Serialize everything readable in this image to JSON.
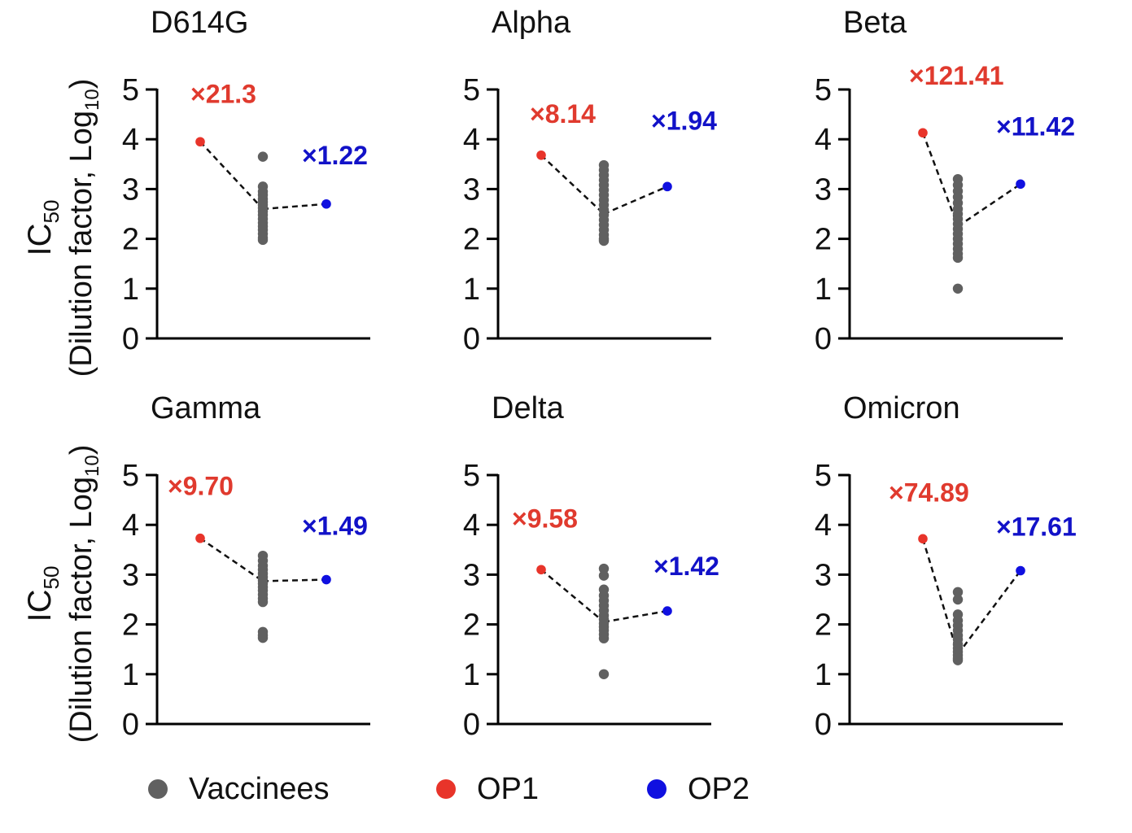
{
  "chart_data": [
    {
      "type": "scatter",
      "title": "D614G",
      "ylabel_main": "IC",
      "ylabel_sub": "50",
      "ylabel2": "(Dilution factor, Log",
      "ylabel2_sub": "10",
      "ylabel2_close": ")",
      "ylim": [
        0,
        5
      ],
      "yticks": [
        "0",
        "1",
        "2",
        "3",
        "4",
        "5"
      ],
      "op1": {
        "value": 3.95,
        "label": "×21.3"
      },
      "op2": {
        "value": 2.7,
        "label": "×1.22"
      },
      "vaccinees_median": 2.6,
      "vaccinees": [
        3.65,
        3.05,
        2.95,
        2.88,
        2.8,
        2.74,
        2.68,
        2.62,
        2.55,
        2.48,
        2.4,
        2.32,
        2.25,
        2.18,
        2.1,
        2.02,
        1.98
      ]
    },
    {
      "type": "scatter",
      "title": "Alpha",
      "ylim": [
        0,
        5
      ],
      "yticks": [
        "0",
        "1",
        "2",
        "3",
        "4",
        "5"
      ],
      "op1": {
        "value": 3.68,
        "label": "×8.14"
      },
      "op2": {
        "value": 3.05,
        "label": "×1.94"
      },
      "vaccinees_median": 2.5,
      "vaccinees": [
        3.48,
        3.38,
        3.28,
        3.18,
        3.08,
        2.98,
        2.88,
        2.78,
        2.68,
        2.58,
        2.48,
        2.38,
        2.28,
        2.18,
        2.08,
        2.0,
        1.96
      ]
    },
    {
      "type": "scatter",
      "title": "Beta",
      "ylim": [
        0,
        5
      ],
      "yticks": [
        "0",
        "1",
        "2",
        "3",
        "4",
        "5"
      ],
      "op1": {
        "value": 4.13,
        "label": "×121.41"
      },
      "op2": {
        "value": 3.1,
        "label": "×11.42"
      },
      "vaccinees_median": 2.25,
      "vaccinees": [
        3.2,
        3.08,
        2.96,
        2.84,
        2.72,
        2.6,
        2.5,
        2.4,
        2.3,
        2.2,
        2.1,
        2.0,
        1.9,
        1.8,
        1.7,
        1.62,
        1.0
      ]
    },
    {
      "type": "scatter",
      "title": "Gamma",
      "ylim": [
        0,
        5
      ],
      "yticks": [
        "0",
        "1",
        "2",
        "3",
        "4",
        "5"
      ],
      "op1": {
        "value": 3.73,
        "label": "×9.70"
      },
      "op2": {
        "value": 2.9,
        "label": "×1.49"
      },
      "vaccinees_median": 2.87,
      "vaccinees": [
        3.38,
        3.28,
        3.18,
        3.1,
        3.02,
        2.95,
        2.88,
        2.82,
        2.75,
        2.68,
        2.6,
        2.52,
        2.45,
        1.85,
        1.78,
        1.73
      ]
    },
    {
      "type": "scatter",
      "title": "Delta",
      "ylim": [
        0,
        5
      ],
      "yticks": [
        "0",
        "1",
        "2",
        "3",
        "4",
        "5"
      ],
      "op1": {
        "value": 3.1,
        "label": "×9.58"
      },
      "op2": {
        "value": 2.27,
        "label": "×1.42"
      },
      "vaccinees_median": 2.05,
      "vaccinees": [
        3.12,
        2.98,
        2.7,
        2.58,
        2.48,
        2.38,
        2.28,
        2.18,
        2.1,
        2.02,
        1.95,
        1.88,
        1.8,
        1.72,
        1.0
      ]
    },
    {
      "type": "scatter",
      "title": "Omicron",
      "ylim": [
        0,
        5
      ],
      "yticks": [
        "0",
        "1",
        "2",
        "3",
        "4",
        "5"
      ],
      "op1": {
        "value": 3.72,
        "label": "×74.89"
      },
      "op2": {
        "value": 3.08,
        "label": "×17.61"
      },
      "vaccinees_median": 1.4,
      "vaccinees": [
        2.65,
        2.5,
        2.2,
        2.08,
        1.98,
        1.88,
        1.78,
        1.7,
        1.6,
        1.52,
        1.45,
        1.38,
        1.32,
        1.28
      ]
    }
  ],
  "legend": [
    {
      "label": "Vaccinees",
      "color": "#606060"
    },
    {
      "label": "OP1",
      "color": "#e8342a"
    },
    {
      "label": "OP2",
      "color": "#1010e0"
    }
  ],
  "colors": {
    "vaccinees": "#606060",
    "op1": "#e8342a",
    "op2": "#1010e0",
    "op1_text": "#e03a2e",
    "op2_text": "#1212c8",
    "axis": "#000000"
  }
}
